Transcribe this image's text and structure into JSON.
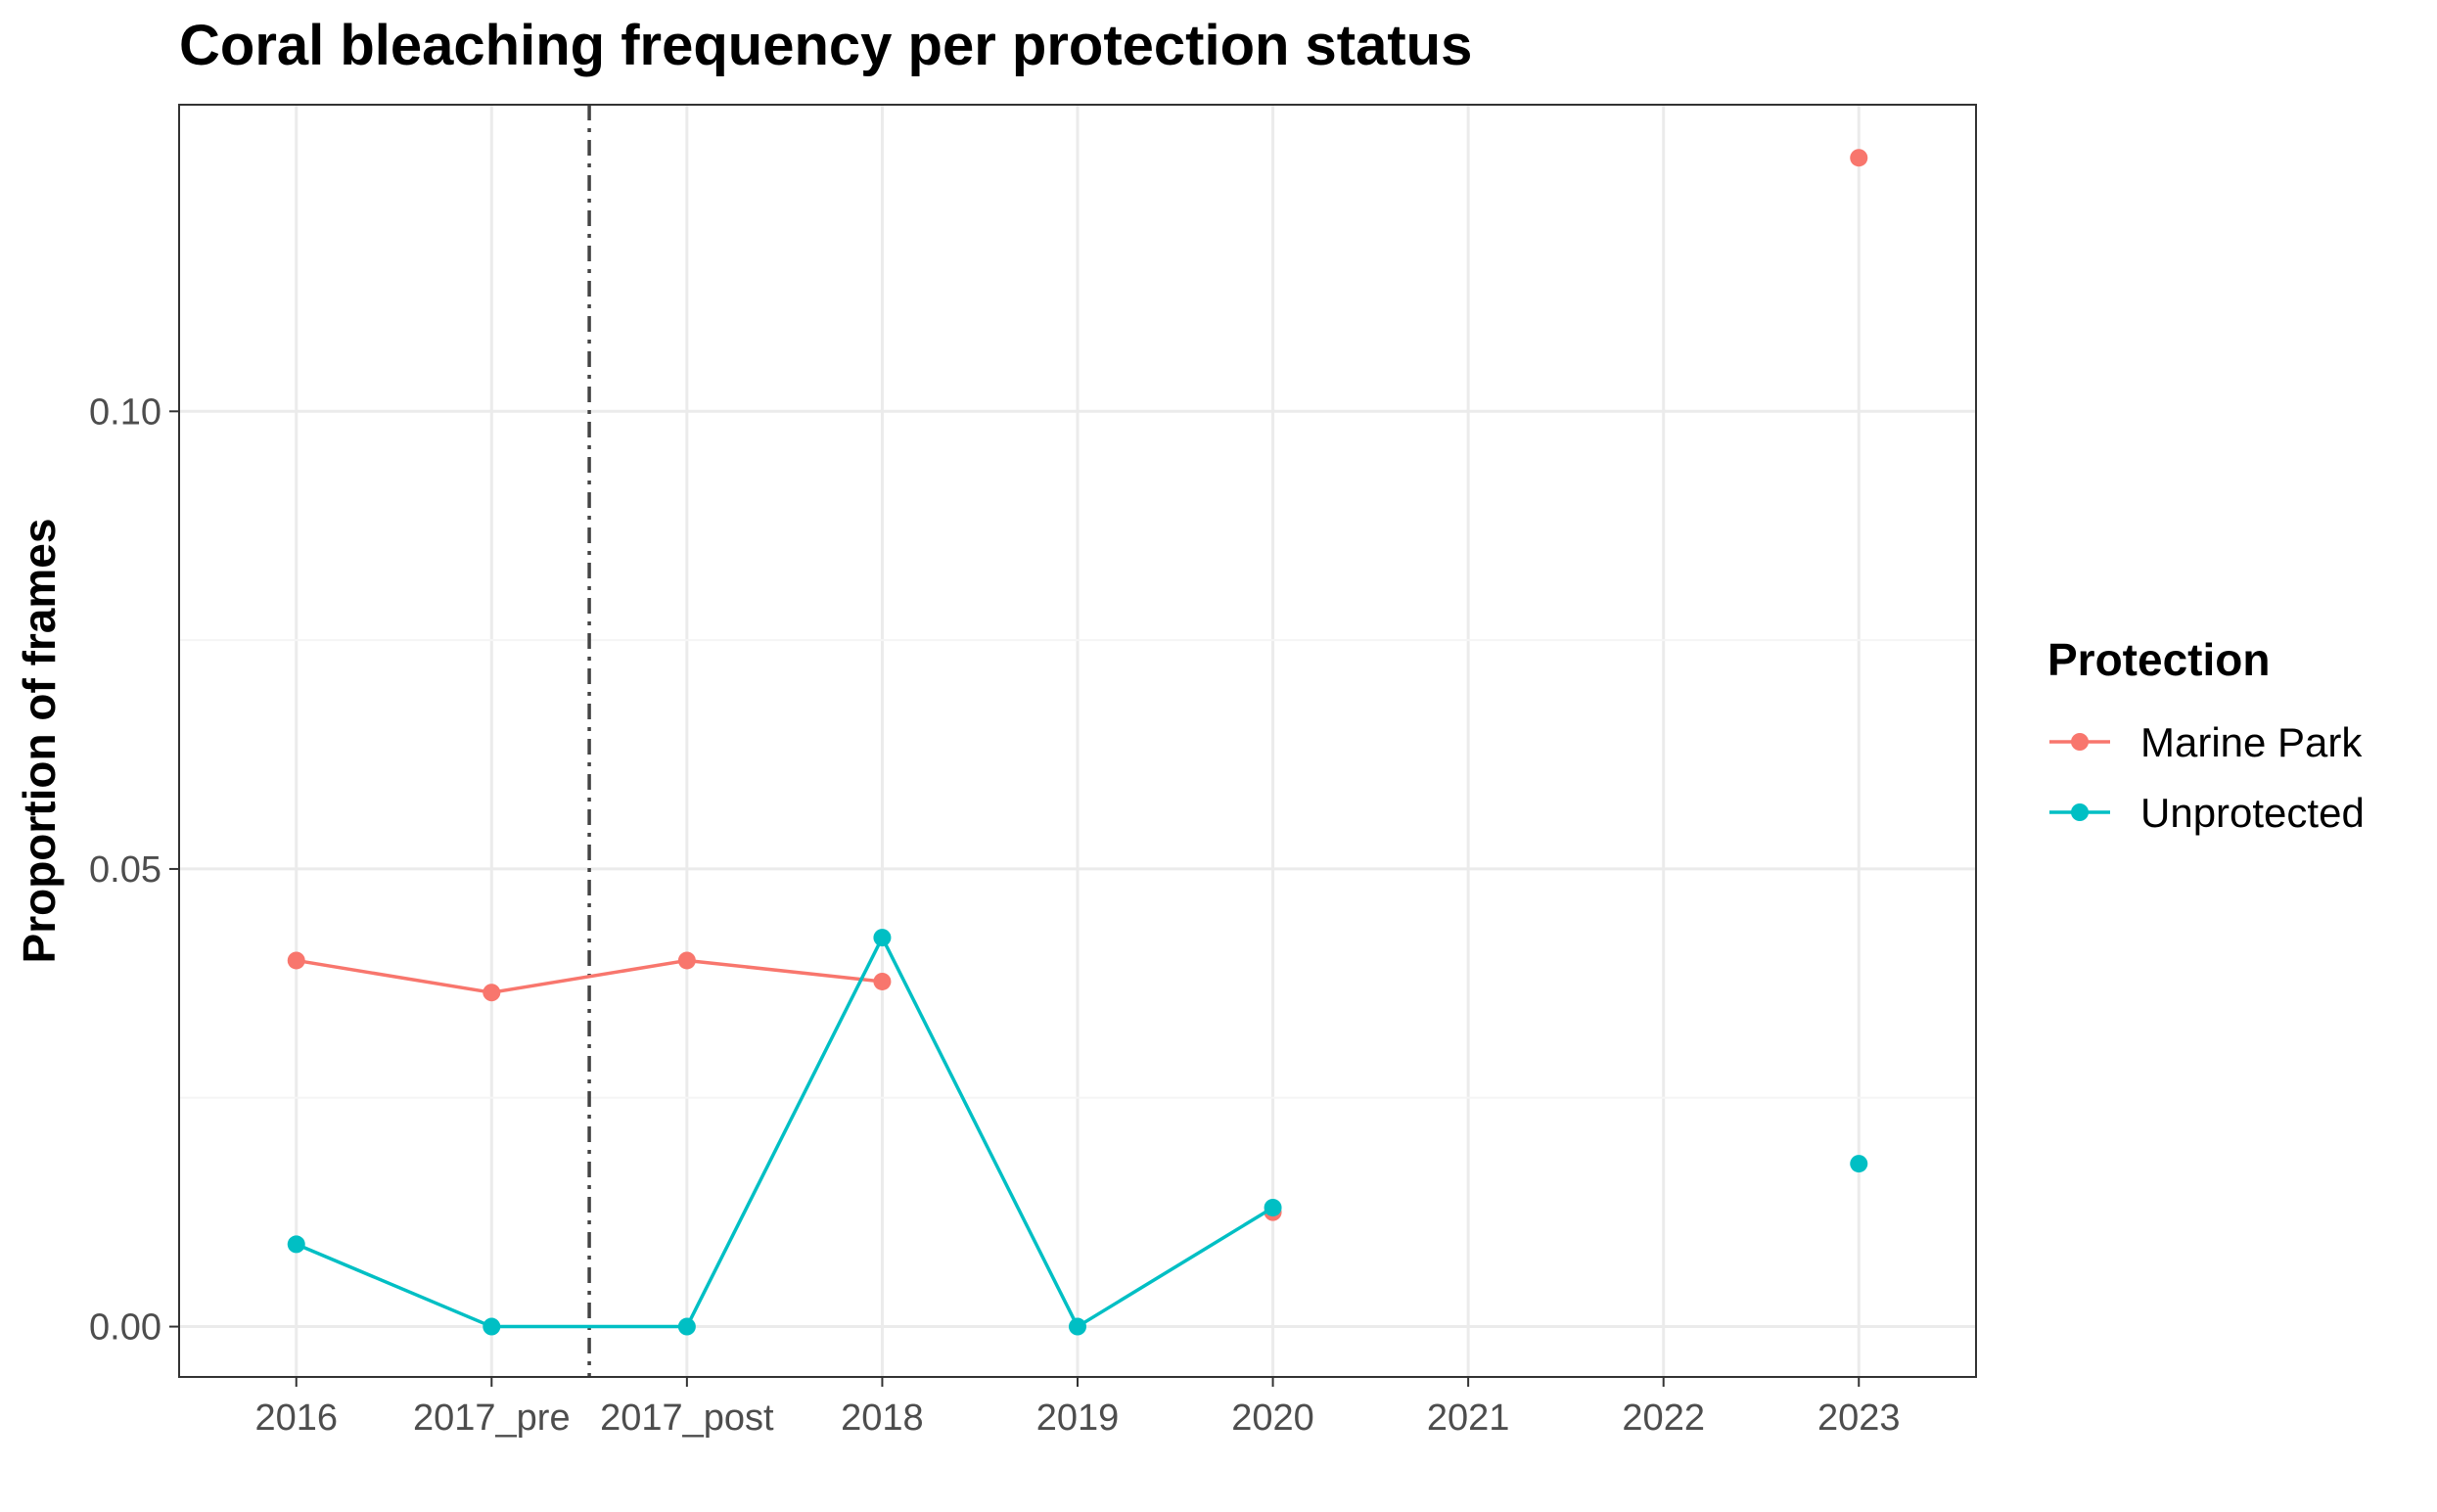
{
  "chart_data": {
    "type": "line",
    "title": "Coral bleaching frequency per protection status",
    "xlabel": "",
    "ylabel": "Proportion of frames",
    "categories": [
      "2016",
      "2017_pre",
      "2017_post",
      "2018",
      "2019",
      "2020",
      "2021",
      "2022",
      "2023"
    ],
    "ylim": [
      -0.0055,
      0.1335
    ],
    "yticks": [
      0.0,
      0.05,
      0.1
    ],
    "ytick_labels": [
      "0.00",
      "0.05",
      "0.10"
    ],
    "grid": true,
    "reference_line": {
      "between": [
        "2017_pre",
        "2017_post"
      ],
      "style": "dash-dot"
    },
    "legend": {
      "title": "Protection",
      "position": "right"
    },
    "series": [
      {
        "name": "Marine Park",
        "color": "#F8766D",
        "values": [
          0.04,
          0.0365,
          0.04,
          0.0377,
          null,
          0.0125,
          null,
          null,
          0.1277
        ]
      },
      {
        "name": "Unprotected",
        "color": "#00BFC4",
        "values": [
          0.009,
          0.0,
          0.0,
          0.0425,
          0.0,
          0.013,
          null,
          null,
          0.0178
        ]
      }
    ]
  }
}
